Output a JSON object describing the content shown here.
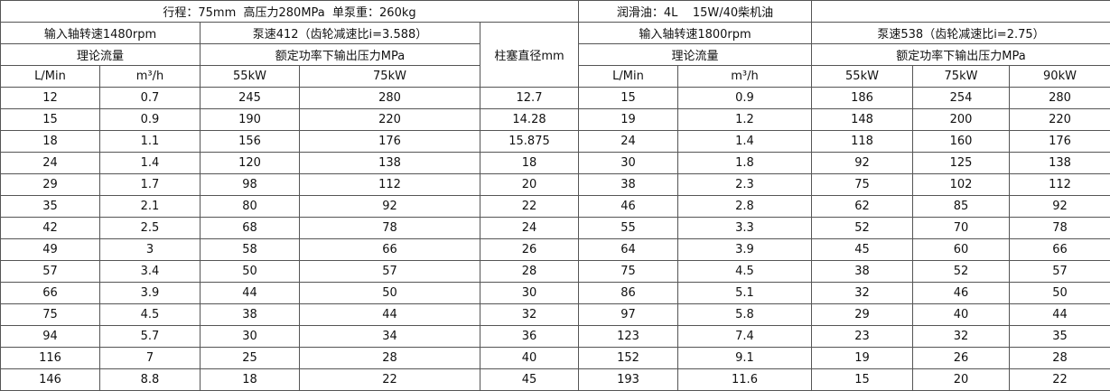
{
  "table": {
    "header": {
      "spec": "行程：75mm  高压力280MPa  单泵重：260kg",
      "oil": "润滑油：4L    15W/40柴机油",
      "left_input_speed": "输入轴转速1480rpm",
      "left_pump_speed": "泵速412（齿轮减速比i=3.588）",
      "plunger": "柱塞直径mm",
      "right_input_speed": "输入轴转速1800rpm",
      "right_pump_speed": "泵速538（齿轮减速比i=2.75）",
      "left_flow": "理论流量",
      "left_pressure": "额定功率下输出压力MPa",
      "right_flow": "理论流量",
      "right_pressure": "额定功率下输出压力MPa",
      "left_units": [
        "L/Min",
        "m³/h",
        "55kW",
        "75kW"
      ],
      "right_units": [
        "L/Min",
        "m³/h",
        "55kW",
        "75kW",
        "90kW"
      ]
    },
    "rows": [
      [
        "12",
        "0.7",
        "245",
        "280",
        "12.7",
        "15",
        "0.9",
        "186",
        "254",
        "280"
      ],
      [
        "15",
        "0.9",
        "190",
        "220",
        "14.28",
        "19",
        "1.2",
        "148",
        "200",
        "220"
      ],
      [
        "18",
        "1.1",
        "156",
        "176",
        "15.875",
        "24",
        "1.4",
        "118",
        "160",
        "176"
      ],
      [
        "24",
        "1.4",
        "120",
        "138",
        "18",
        "30",
        "1.8",
        "92",
        "125",
        "138"
      ],
      [
        "29",
        "1.7",
        "98",
        "112",
        "20",
        "38",
        "2.3",
        "75",
        "102",
        "112"
      ],
      [
        "35",
        "2.1",
        "80",
        "92",
        "22",
        "46",
        "2.8",
        "62",
        "85",
        "92"
      ],
      [
        "42",
        "2.5",
        "68",
        "78",
        "24",
        "55",
        "3.3",
        "52",
        "70",
        "78"
      ],
      [
        "49",
        "3",
        "58",
        "66",
        "26",
        "64",
        "3.9",
        "45",
        "60",
        "66"
      ],
      [
        "57",
        "3.4",
        "50",
        "57",
        "28",
        "75",
        "4.5",
        "38",
        "52",
        "57"
      ],
      [
        "66",
        "3.9",
        "44",
        "50",
        "30",
        "86",
        "5.1",
        "32",
        "46",
        "50"
      ],
      [
        "75",
        "4.5",
        "38",
        "44",
        "32",
        "97",
        "5.8",
        "29",
        "40",
        "44"
      ],
      [
        "94",
        "5.7",
        "30",
        "34",
        "36",
        "123",
        "7.4",
        "23",
        "32",
        "35"
      ],
      [
        "116",
        "7",
        "25",
        "28",
        "40",
        "152",
        "9.1",
        "19",
        "26",
        "28"
      ],
      [
        "146",
        "8.8",
        "18",
        "22",
        "45",
        "193",
        "11.6",
        "15",
        "20",
        "22"
      ]
    ]
  }
}
